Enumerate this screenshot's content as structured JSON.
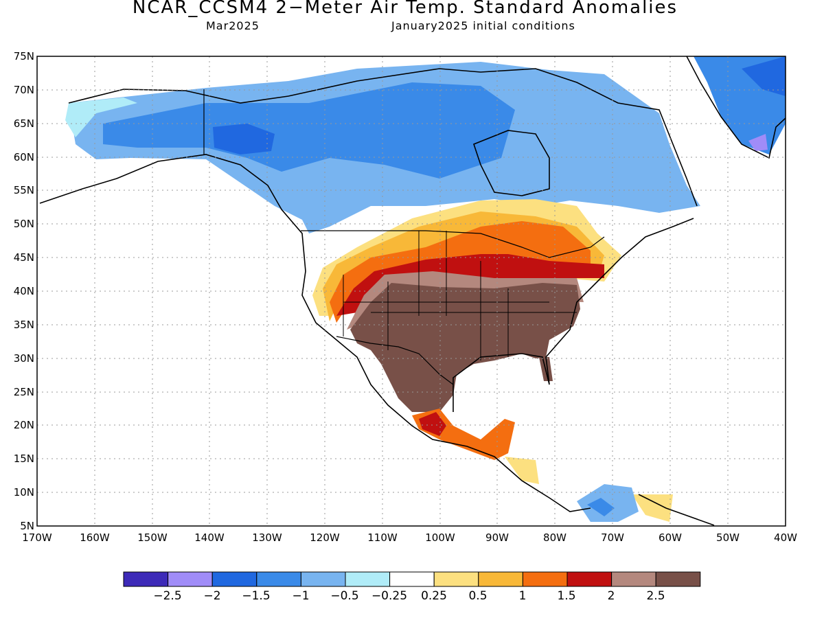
{
  "title": "NCAR_CCSM4 2−Meter Air Temp. Standard Anomalies",
  "subtitle_left": "Mar2025",
  "subtitle_right": "January2025 initial conditions",
  "map": {
    "lon_range": [
      -170,
      -40
    ],
    "lat_range": [
      5,
      75
    ],
    "lat_ticks": [
      "75N",
      "70N",
      "65N",
      "60N",
      "55N",
      "50N",
      "45N",
      "40N",
      "35N",
      "30N",
      "25N",
      "20N",
      "15N",
      "10N",
      "5N"
    ],
    "lon_ticks": [
      "170W",
      "160W",
      "150W",
      "140W",
      "130W",
      "120W",
      "110W",
      "100W",
      "90W",
      "80W",
      "70W",
      "60W",
      "50W",
      "40W"
    ]
  },
  "colorbar": {
    "colors": [
      "#3d2ab8",
      "#a08cf8",
      "#2068e0",
      "#3a8ae8",
      "#78b4f0",
      "#b0ecf8",
      "#ffffff",
      "#fce080",
      "#f8b838",
      "#f46e10",
      "#c01010",
      "#b4887e",
      "#785048"
    ],
    "labels": [
      "−2.5",
      "−2",
      "−1.5",
      "−1",
      "−0.5",
      "−0.25",
      "0.25",
      "0.5",
      "1",
      "1.5",
      "2",
      "2.5"
    ]
  }
}
